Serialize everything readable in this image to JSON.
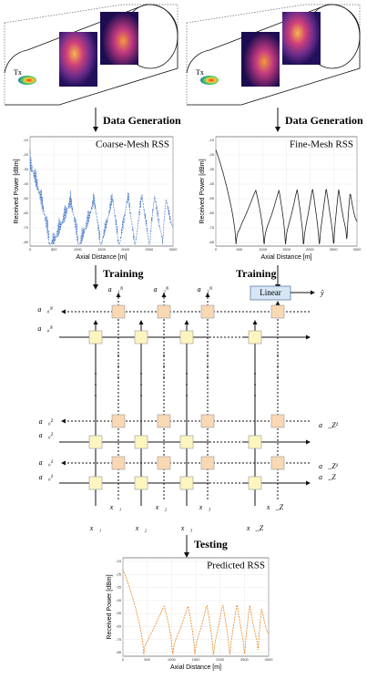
{
  "left": {
    "step_label": "Data Generation",
    "chart": {
      "title": "Coarse-Mesh RSS",
      "y_label": "Received Power [dBm]",
      "x_label": "Axial Distance [m]",
      "yticks": [
        "-10",
        "-20",
        "-30",
        "-40",
        "-50",
        "-60",
        "-70",
        "-80"
      ],
      "xticks": [
        "0",
        "500",
        "1000",
        "1500",
        "2000",
        "2500",
        "3000"
      ]
    },
    "tx_label": "Tx",
    "train_label": "Training"
  },
  "right": {
    "step_label": "Data Generation",
    "chart": {
      "title": "Fine-Mesh RSS",
      "y_label": "Received Power [dBm]",
      "x_label": "Axial Distance [m]",
      "yticks": [
        "-15",
        "-25",
        "-35",
        "-45",
        "-55",
        "-65",
        "-75",
        "-85"
      ],
      "xticks": [
        "0",
        "500",
        "1000",
        "1500",
        "2000",
        "2500",
        "3000"
      ]
    },
    "tx_label": "Tx",
    "train_label": "Training"
  },
  "network": {
    "linear_label": "Linear",
    "output_label": "ŷ",
    "top_labels": [
      "a⃖₁ᴺ",
      "a⃖₂ᴺ",
      "a⃖₃ᴺ"
    ],
    "left_labels": [
      "a⃖₀ᴺ",
      "a⃗₀ᴺ",
      "a⃖₀²",
      "a⃗₀²",
      "a⃖₀¹",
      "a⃗₀¹"
    ],
    "right_labels": [
      "a⃗_Z²",
      "a⃗_Z¹",
      "a⃗_Z"
    ],
    "bottom_back_labels": [
      "x⃖₁",
      "x⃖₂",
      "x⃖₃",
      "x⃖_Z"
    ],
    "bottom_fwd_labels": [
      "x⃗₁",
      "x⃗₂",
      "x⃗₃",
      "x⃗_Z"
    ]
  },
  "test": {
    "step_label": "Testing",
    "chart": {
      "title": "Predicted RSS",
      "y_label": "Received Power [dBm]",
      "x_label": "Axial Distance [m]",
      "yticks": [
        "-15",
        "-25",
        "-35",
        "-45",
        "-55",
        "-65",
        "-75",
        "-85"
      ],
      "xticks": [
        "0",
        "500",
        "1000",
        "1500",
        "2000",
        "2500",
        "3000"
      ]
    }
  }
}
